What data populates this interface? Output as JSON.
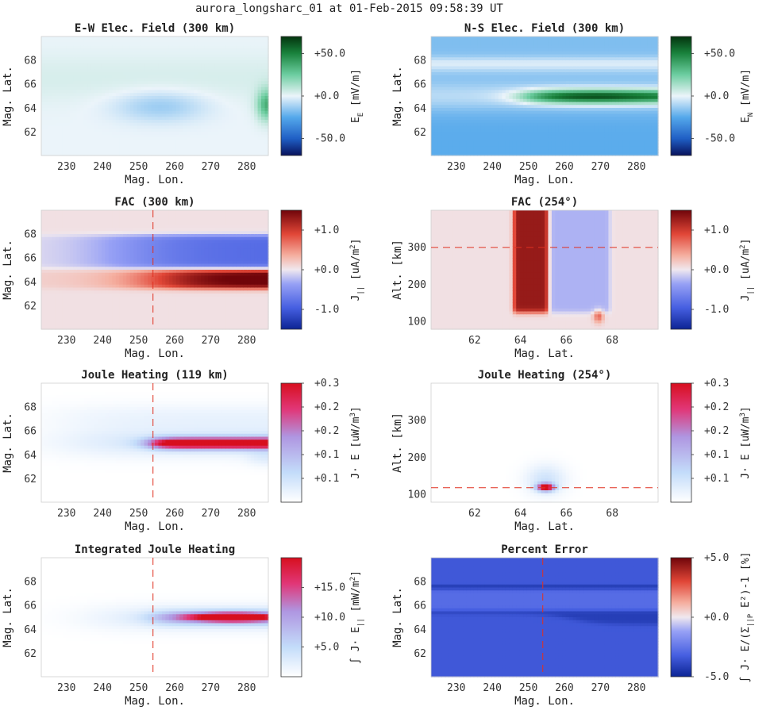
{
  "figure": {
    "suptitle": "aurora_longsharc_01 at 01-Feb-2015 09:58:39 UT"
  },
  "chart_data": [
    {
      "id": "ew",
      "type": "heatmap",
      "title": "E-W Elec. Field (300 km)",
      "xlabel": "Mag. Lon.",
      "ylabel": "Mag. Lat.",
      "xlim": [
        223,
        286
      ],
      "ylim": [
        60.1,
        70
      ],
      "xticks": [
        230,
        240,
        250,
        260,
        270,
        280
      ],
      "yticks": [
        62,
        64,
        66,
        68
      ],
      "cmap": "div_blue_green",
      "clim": [
        -70,
        70
      ],
      "cbar_ticks": [
        {
          "v": 50,
          "label": "+50.0"
        },
        {
          "v": 0,
          "label": "+0.0"
        },
        {
          "v": -50,
          "label": "-50.0"
        }
      ],
      "cbar_label": "E",
      "cbar_sub": "E",
      "cbar_unit": " [mV/m]",
      "field": "ew",
      "cut_line": null,
      "show_xlabel": true
    },
    {
      "id": "ns",
      "type": "heatmap",
      "title": "N-S Elec. Field (300 km)",
      "xlabel": "Mag. Lon.",
      "ylabel": "Mag. Lat.",
      "xlim": [
        223,
        286
      ],
      "ylim": [
        60.1,
        70
      ],
      "xticks": [
        230,
        240,
        250,
        260,
        270,
        280
      ],
      "yticks": [
        62,
        64,
        66,
        68
      ],
      "cmap": "div_blue_green",
      "clim": [
        -70,
        70
      ],
      "cbar_ticks": [
        {
          "v": 50,
          "label": "+50.0"
        },
        {
          "v": 0,
          "label": "+0.0"
        },
        {
          "v": -50,
          "label": "-50.0"
        }
      ],
      "cbar_label": "E",
      "cbar_sub": "N",
      "cbar_unit": " [mV/m]",
      "field": "ns",
      "cut_line": null,
      "show_xlabel": true
    },
    {
      "id": "fac",
      "type": "heatmap",
      "title": "FAC (300 km)",
      "xlabel": "Mag. Lon.",
      "ylabel": "Mag. Lat.",
      "xlim": [
        223,
        286
      ],
      "ylim": [
        60.1,
        70
      ],
      "xticks": [
        230,
        240,
        250,
        260,
        270,
        280
      ],
      "yticks": [
        62,
        64,
        66,
        68
      ],
      "cmap": "div_blue_red",
      "clim": [
        -1.5,
        1.5
      ],
      "cbar_ticks": [
        {
          "v": 1,
          "label": "+1.0"
        },
        {
          "v": 0,
          "label": "+0.0"
        },
        {
          "v": -1,
          "label": "-1.0"
        }
      ],
      "cbar_label": "J",
      "cbar_sub": "||",
      "cbar_unit": "  [uA/m",
      "cbar_sup": "2",
      "cbar_tail": "]",
      "field": "fac",
      "cut_line": {
        "axis": "x",
        "value": 254
      },
      "show_xlabel": true
    },
    {
      "id": "fac_alt",
      "type": "heatmap",
      "title": "FAC (254°)",
      "xlabel": "Mag. Lat.",
      "ylabel": "Alt. [km]",
      "xlim": [
        60.1,
        70
      ],
      "ylim": [
        80,
        400
      ],
      "xticks": [
        62,
        64,
        66,
        68
      ],
      "yticks": [
        100,
        200,
        300
      ],
      "cmap": "div_blue_red",
      "clim": [
        -1.5,
        1.5
      ],
      "cbar_ticks": [
        {
          "v": 1,
          "label": "+1.0"
        },
        {
          "v": 0,
          "label": "+0.0"
        },
        {
          "v": -1,
          "label": "-1.0"
        }
      ],
      "cbar_label": "J",
      "cbar_sub": "||",
      "cbar_unit": "  [uA/m",
      "cbar_sup": "2",
      "cbar_tail": "]",
      "field": "fac_alt",
      "cut_line": {
        "axis": "y",
        "value": 300
      },
      "show_xlabel": true
    },
    {
      "id": "jh",
      "type": "heatmap",
      "title": "Joule Heating (119 km)",
      "xlabel": "Mag. Lon.",
      "ylabel": "Mag. Lat.",
      "xlim": [
        223,
        286
      ],
      "ylim": [
        60.1,
        70
      ],
      "xticks": [
        230,
        240,
        250,
        260,
        270,
        280
      ],
      "yticks": [
        62,
        64,
        66,
        68
      ],
      "cmap": "seq_white_red",
      "clim": [
        0,
        0.3
      ],
      "cbar_ticks": [
        {
          "v": 0.3,
          "label": "+0.3"
        },
        {
          "v": 0.24,
          "label": "+0.2"
        },
        {
          "v": 0.18,
          "label": "+0.2"
        },
        {
          "v": 0.12,
          "label": "+0.1"
        },
        {
          "v": 0.06,
          "label": "+0.1"
        }
      ],
      "cbar_label": "J· E",
      "cbar_sub": "",
      "cbar_unit": " [uW/m",
      "cbar_sup": "3",
      "cbar_tail": "]",
      "field": "jh",
      "cut_line": {
        "axis": "x",
        "value": 254
      },
      "show_xlabel": true
    },
    {
      "id": "jh_alt",
      "type": "heatmap",
      "title": "Joule Heating (254°)",
      "xlabel": "Mag. Lat.",
      "ylabel": "Alt. [km]",
      "xlim": [
        60.1,
        70
      ],
      "ylim": [
        80,
        400
      ],
      "xticks": [
        62,
        64,
        66,
        68
      ],
      "yticks": [
        100,
        200,
        300
      ],
      "cmap": "seq_white_red",
      "clim": [
        0,
        0.3
      ],
      "cbar_ticks": [
        {
          "v": 0.3,
          "label": "+0.3"
        },
        {
          "v": 0.24,
          "label": "+0.2"
        },
        {
          "v": 0.18,
          "label": "+0.2"
        },
        {
          "v": 0.12,
          "label": "+0.1"
        },
        {
          "v": 0.06,
          "label": "+0.1"
        }
      ],
      "cbar_label": "J· E",
      "cbar_sub": "",
      "cbar_unit": " [uW/m",
      "cbar_sup": "3",
      "cbar_tail": "]",
      "field": "jh_alt",
      "cut_line": {
        "axis": "y",
        "value": 119
      },
      "show_xlabel": true
    },
    {
      "id": "ijh",
      "type": "heatmap",
      "title": "Integrated Joule Heating",
      "xlabel": "Mag. Lon.",
      "ylabel": "Mag. Lat.",
      "xlim": [
        223,
        286
      ],
      "ylim": [
        60.1,
        70
      ],
      "xticks": [
        230,
        240,
        250,
        260,
        270,
        280
      ],
      "yticks": [
        62,
        64,
        66,
        68
      ],
      "cmap": "seq_white_red",
      "clim": [
        0,
        20
      ],
      "cbar_ticks": [
        {
          "v": 15,
          "label": "+15.0"
        },
        {
          "v": 10,
          "label": "+10.0"
        },
        {
          "v": 5,
          "label": "+5.0"
        }
      ],
      "cbar_label": "∫ J· E",
      "cbar_sub": "||",
      "cbar_unit": " [mW/m",
      "cbar_sup": "2",
      "cbar_tail": "]",
      "field": "ijh",
      "cut_line": {
        "axis": "x",
        "value": 254
      },
      "show_xlabel": true
    },
    {
      "id": "perr",
      "type": "heatmap",
      "title": "Percent Error",
      "xlabel": "Mag. Lon.",
      "ylabel": "Mag. Lat.",
      "xlim": [
        223,
        286
      ],
      "ylim": [
        60.1,
        70
      ],
      "xticks": [
        230,
        240,
        250,
        260,
        270,
        280
      ],
      "yticks": [
        62,
        64,
        66,
        68
      ],
      "cmap": "div_blue_red",
      "clim": [
        -5,
        5
      ],
      "cbar_ticks": [
        {
          "v": 5,
          "label": "+5.0"
        },
        {
          "v": 0,
          "label": "+0.0"
        },
        {
          "v": -5,
          "label": "-5.0"
        }
      ],
      "cbar_label": "∫ J· E/(Σ",
      "cbar_sub": "||",
      "cbar_unit": "P",
      "cbar_sup": "",
      "cbar_tail": " E²)-1 [%]",
      "field": "perr",
      "cut_line": {
        "axis": "x",
        "value": 254
      },
      "show_xlabel": true
    }
  ]
}
